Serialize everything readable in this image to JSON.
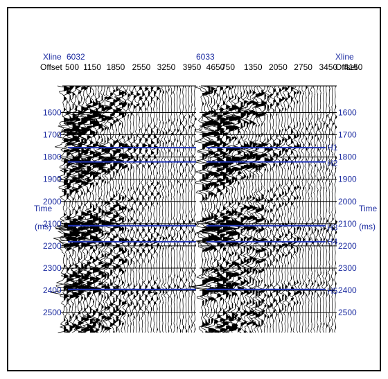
{
  "header": {
    "xline_label": "Xline",
    "offset_label": "Offset",
    "xline_left": "6032",
    "xline_right": "6033",
    "offsets_left": [
      "500",
      "1150",
      "1850",
      "2550",
      "3250",
      "3950",
      "4650"
    ],
    "offsets_right": [
      "750",
      "1350",
      "2050",
      "2750",
      "3450",
      "4150"
    ]
  },
  "axis": {
    "label": "Time",
    "unit": "(ms)",
    "ticks": [
      "1600",
      "1700",
      "1800",
      "1900",
      "2000",
      "2100",
      "2200",
      "2300",
      "2400",
      "2500"
    ],
    "time_range_ms": [
      1480,
      2590
    ]
  },
  "horizons": [
    {
      "label": "H1",
      "time_ms": 1758
    },
    {
      "label": "H2",
      "time_ms": 1822
    },
    {
      "label": "H3",
      "time_ms": 2109
    },
    {
      "label": "H4",
      "time_ms": 2181
    },
    {
      "label": "H5",
      "time_ms": 2396
    }
  ],
  "colors": {
    "label_blue": "#1a2aa0",
    "horizon_blue": "#1f33b8",
    "trace": "#000000",
    "frame": "#000000"
  }
}
